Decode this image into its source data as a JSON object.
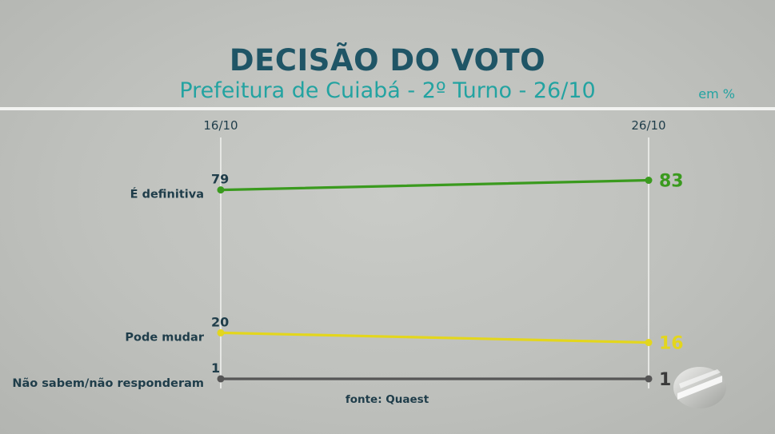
{
  "header": {
    "title": "DECISÃO DO VOTO",
    "subtitle": "Prefeitura de Cuiabá - 2º Turno - 26/10",
    "unit": "em %"
  },
  "source": "fonte: Quaest",
  "colors": {
    "title": "#1f5566",
    "subtitle": "#23a3a1",
    "series": [
      "#3a9a1e",
      "#e3d61d",
      "#555555"
    ],
    "start_labels": "#1f3d4a"
  },
  "chart_data": {
    "type": "line",
    "x": [
      "16/10",
      "26/10"
    ],
    "series": [
      {
        "name": "É definitiva",
        "values": [
          79,
          83
        ]
      },
      {
        "name": "Pode mudar",
        "values": [
          20,
          16
        ]
      },
      {
        "name": "Não sabem/não responderam",
        "values": [
          1,
          1
        ]
      }
    ],
    "ylim": [
      0,
      100
    ],
    "grid": false,
    "legend": "left"
  }
}
